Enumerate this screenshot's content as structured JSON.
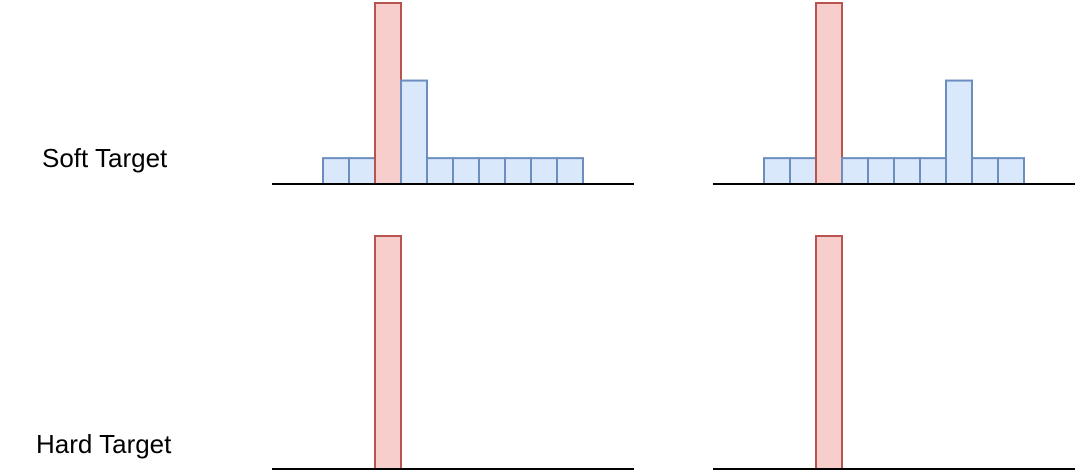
{
  "row_labels": [
    "Soft Target",
    "Hard Target"
  ],
  "chart_data": [
    {
      "type": "bar",
      "categories": [
        null,
        null,
        null,
        null,
        null,
        null,
        null,
        null,
        null,
        null
      ],
      "values": [
        1,
        1,
        7,
        4,
        1,
        1,
        1,
        1,
        1,
        1
      ],
      "ylim": [
        0,
        7
      ],
      "colors": [
        "#dae8fc",
        "#dae8fc",
        "#f8cecc",
        "#dae8fc",
        "#dae8fc",
        "#dae8fc",
        "#dae8fc",
        "#dae8fc",
        "#dae8fc",
        "#dae8fc"
      ]
    },
    {
      "type": "bar",
      "categories": [
        null,
        null,
        null,
        null,
        null,
        null,
        null,
        null,
        null,
        null
      ],
      "values": [
        1,
        1,
        7,
        1,
        1,
        1,
        1,
        4,
        1,
        1
      ],
      "ylim": [
        0,
        7
      ],
      "colors": [
        "#dae8fc",
        "#dae8fc",
        "#f8cecc",
        "#dae8fc",
        "#dae8fc",
        "#dae8fc",
        "#dae8fc",
        "#dae8fc",
        "#dae8fc",
        "#dae8fc"
      ]
    },
    {
      "type": "bar",
      "categories": [
        null,
        null,
        null,
        null,
        null,
        null,
        null,
        null,
        null,
        null
      ],
      "values": [
        0,
        0,
        1,
        0,
        0,
        0,
        0,
        0,
        0,
        0
      ],
      "ylim": [
        0,
        1
      ],
      "colors": [
        "#dae8fc",
        "#dae8fc",
        "#f8cecc",
        "#dae8fc",
        "#dae8fc",
        "#dae8fc",
        "#dae8fc",
        "#dae8fc",
        "#dae8fc",
        "#dae8fc"
      ]
    },
    {
      "type": "bar",
      "categories": [
        null,
        null,
        null,
        null,
        null,
        null,
        null,
        null,
        null,
        null
      ],
      "values": [
        0,
        0,
        1,
        0,
        0,
        0,
        0,
        0,
        0,
        0
      ],
      "ylim": [
        0,
        1
      ],
      "colors": [
        "#dae8fc",
        "#dae8fc",
        "#f8cecc",
        "#dae8fc",
        "#dae8fc",
        "#dae8fc",
        "#dae8fc",
        "#dae8fc",
        "#dae8fc",
        "#dae8fc"
      ]
    }
  ]
}
